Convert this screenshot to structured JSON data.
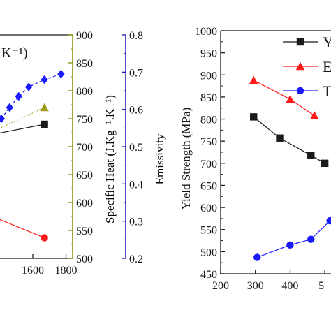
{
  "colors": {
    "black": "#1a1a1a",
    "olive": "#9a9a14",
    "blue": "#1a1aff",
    "red": "#ff1a1a",
    "specific_heat_axis": "#8c8c00",
    "emissivity_axis": "#1a1ab4"
  },
  "chart_data": [
    {
      "type": "line",
      "title": "",
      "top_left_label": "K⁻¹)",
      "xlabel": "",
      "x_ticks": [
        "1600",
        "1800"
      ],
      "axes": {
        "specific_heat": {
          "label": "Specific Heat (J.Kg⁻¹.K⁻¹)",
          "ylim": [
            500,
            900
          ],
          "ticks": [
            "500",
            "550",
            "600",
            "650",
            "700",
            "750",
            "800",
            "850",
            "900"
          ]
        },
        "emissivity": {
          "label": "Emissivity",
          "ylim": [
            0.2,
            0.8
          ],
          "ticks": [
            "0.2",
            "0.3",
            "0.4",
            "0.5",
            "0.6",
            "0.7",
            "0.8"
          ]
        }
      },
      "xlim": [
        1360,
        1840
      ],
      "series": [
        {
          "marker": "diamond",
          "color": "#1a1aff",
          "axis": "emissivity",
          "linestyle": "dashed",
          "x": [
            1410,
            1460,
            1515,
            1575,
            1670,
            1770
          ],
          "y": [
            0.575,
            0.605,
            0.635,
            0.66,
            0.68,
            0.695
          ]
        },
        {
          "marker": "triangle",
          "color": "#9a9a14",
          "axis": "specific_heat",
          "linestyle": "dotted",
          "x": [
            1380,
            1670
          ],
          "y": [
            730,
            770
          ]
        },
        {
          "marker": "square",
          "color": "#1a1a1a",
          "axis": "specific_heat",
          "linestyle": "solid",
          "x": [
            1360,
            1670
          ],
          "y": [
            722,
            740
          ]
        },
        {
          "marker": "circle",
          "color": "#ff1a1a",
          "axis": "specific_heat",
          "linestyle": "solid",
          "x": [
            1380,
            1670
          ],
          "y": [
            572,
            537
          ]
        }
      ]
    },
    {
      "type": "line",
      "title": "",
      "xlabel": "",
      "ylabel": "Yield Strength (MPa)",
      "xlim": [
        200,
        550
      ],
      "ylim": [
        450,
        1000
      ],
      "x_ticks": [
        "200",
        "300",
        "400",
        "5"
      ],
      "y_ticks": [
        "450",
        "500",
        "550",
        "600",
        "650",
        "700",
        "750",
        "800",
        "850",
        "900",
        "950",
        "1000"
      ],
      "legend": {
        "placement": "top-right",
        "entries": [
          "Y",
          "E",
          "T"
        ]
      },
      "series": [
        {
          "name": "Y",
          "marker": "square",
          "color": "#1a1a1a",
          "x": [
            295,
            370,
            460,
            500
          ],
          "y": [
            805,
            757,
            718,
            700
          ]
        },
        {
          "name": "E",
          "marker": "triangle",
          "color": "#ff1a1a",
          "x": [
            295,
            400,
            470
          ],
          "y": [
            888,
            845,
            808
          ]
        },
        {
          "name": "T",
          "marker": "circle",
          "color": "#1a1aff",
          "x": [
            305,
            400,
            460,
            515
          ],
          "y": [
            487,
            515,
            528,
            570
          ]
        }
      ]
    }
  ]
}
